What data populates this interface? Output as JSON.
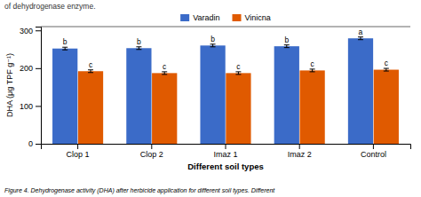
{
  "chart_data": {
    "type": "bar",
    "title": "of dehydrogenase enzyme.",
    "caption": "Figure 4. Dehydrogenase activity (DHA) after herbicide application for different soil types. Different",
    "categories": [
      "Clop 1",
      "Clop 2",
      "Imaz 1",
      "Imaz 2",
      "Control"
    ],
    "series": [
      {
        "name": "Varadin",
        "color": "#3B6BC8",
        "values": [
          252,
          253,
          260,
          258,
          279
        ],
        "errors": [
          3.5,
          3.5,
          3.5,
          3.5,
          3.5
        ],
        "letters": [
          "b",
          "b",
          "b",
          "b",
          "a"
        ]
      },
      {
        "name": "Vinicna",
        "color": "#E05A00",
        "values": [
          192,
          187,
          187,
          194,
          196
        ],
        "errors": [
          3.5,
          3.5,
          3.5,
          3.5,
          3.5
        ],
        "letters": [
          "c",
          "c",
          "c",
          "c",
          "c"
        ]
      }
    ],
    "xlabel": "Different soil types",
    "ylabel": "DHA (μg TPF g⁻¹)",
    "ylim": [
      0,
      310
    ],
    "yticks": [
      0,
      100,
      200,
      300
    ],
    "grid": false,
    "legend": "top"
  }
}
